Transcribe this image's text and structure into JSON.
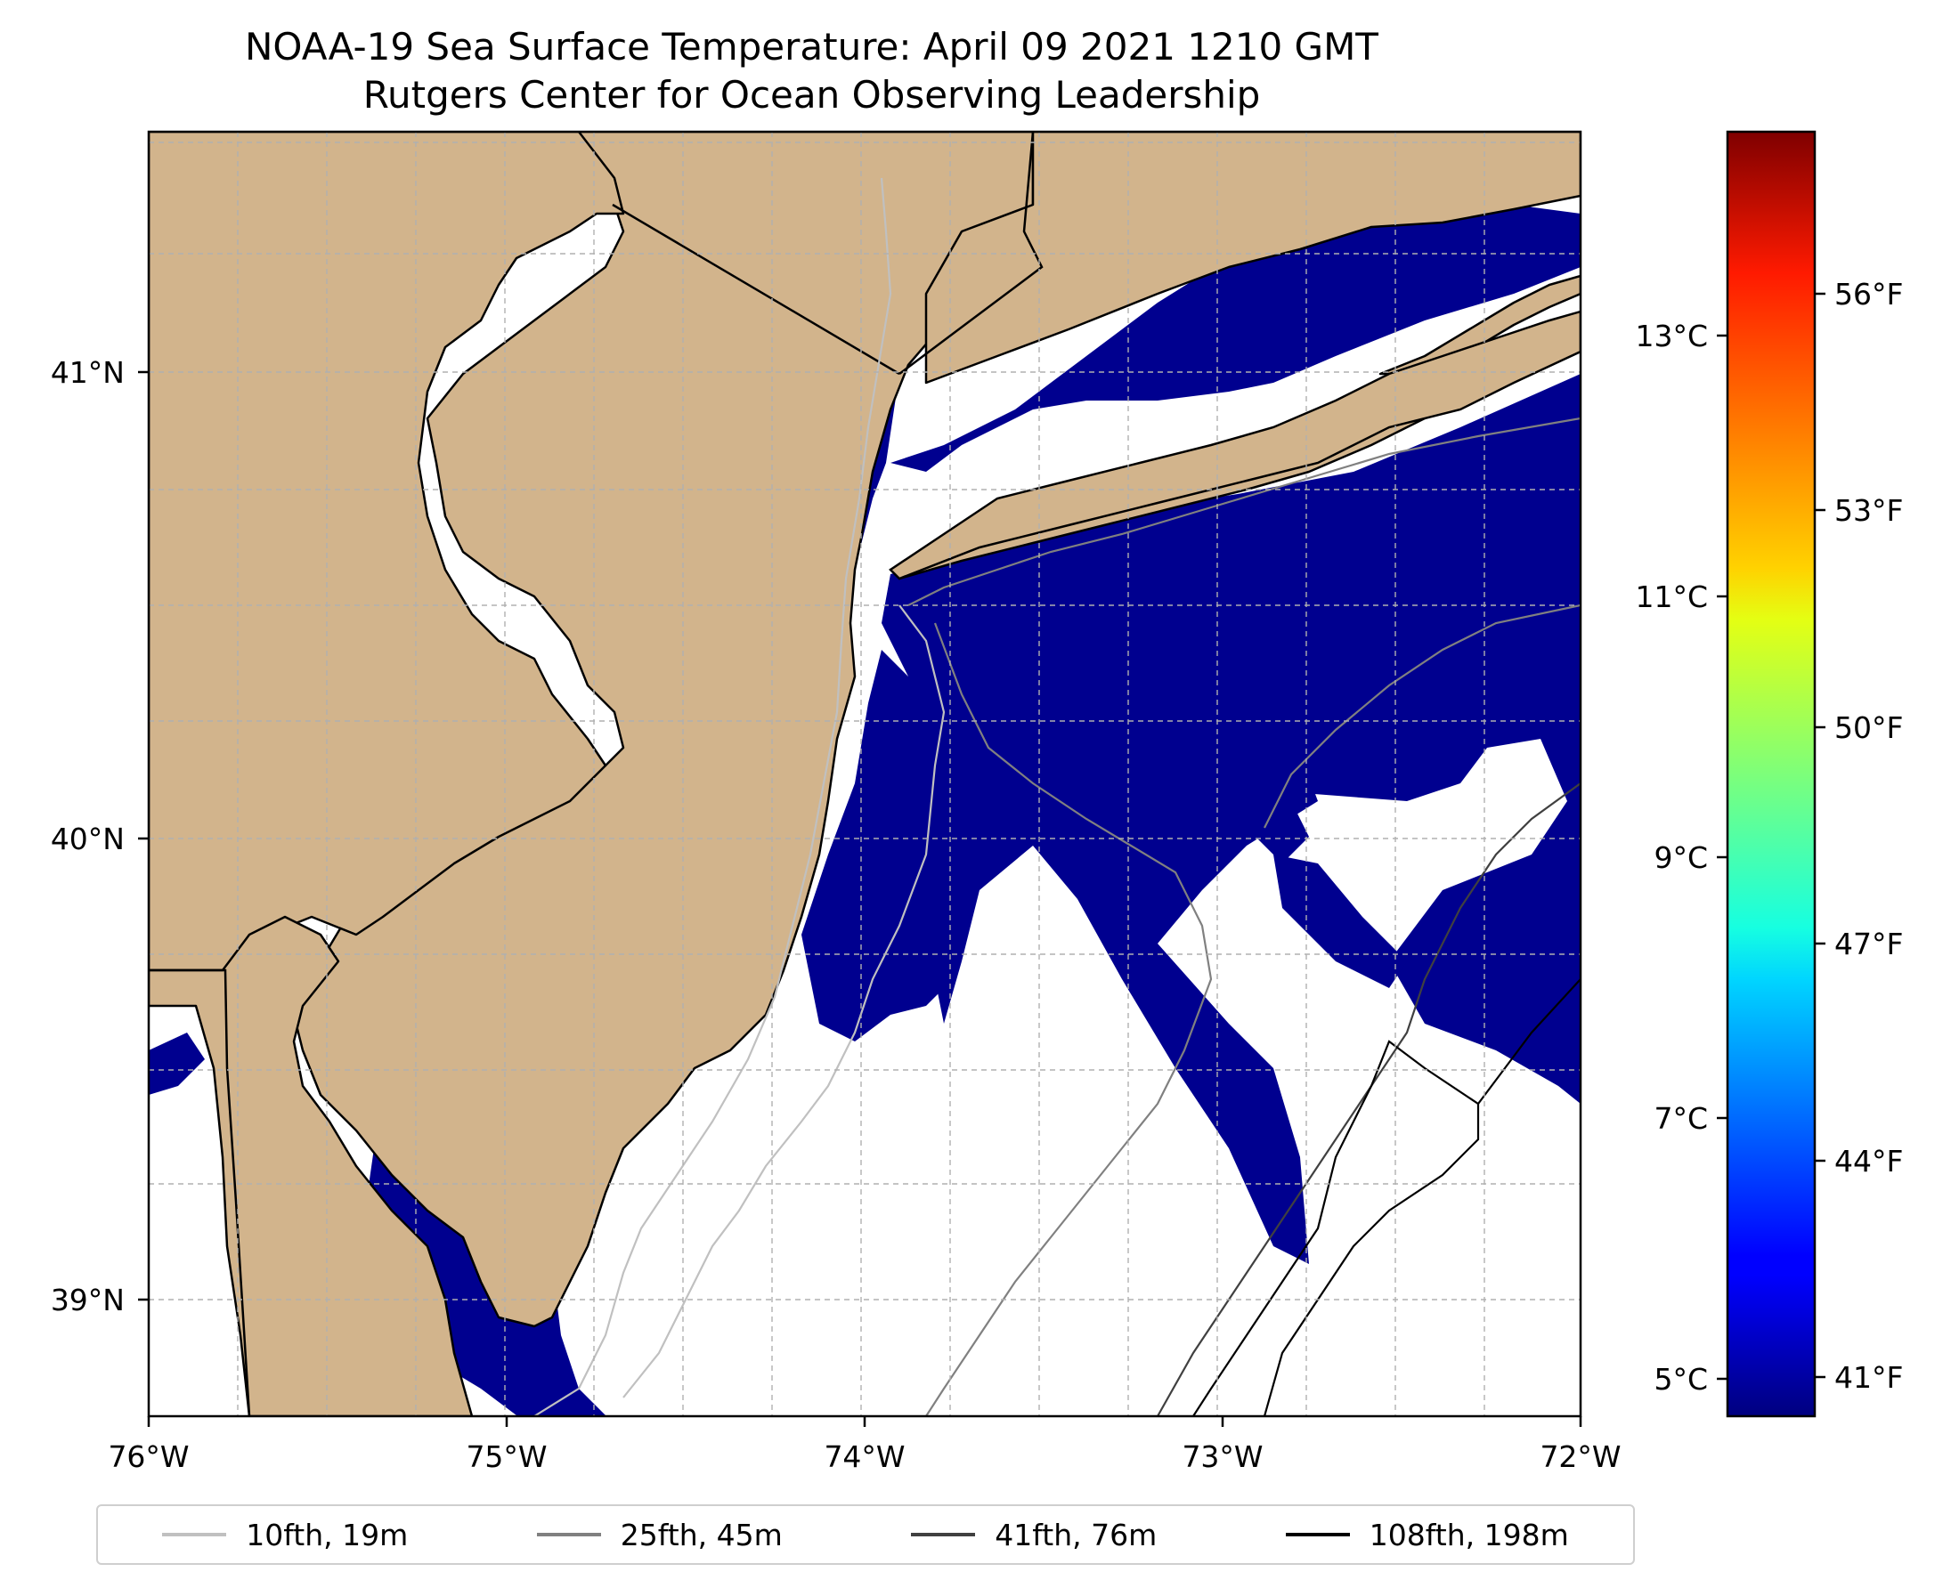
{
  "title": {
    "line1": "NOAA-19 Sea Surface Temperature: April 09 2021 1210 GMT",
    "line2": "Rutgers Center for Ocean Observing Leadership"
  },
  "axes": {
    "x_ticks": [
      "76°W",
      "75°W",
      "74°W",
      "73°W",
      "72°W"
    ],
    "y_ticks": [
      "41°N",
      "40°N",
      "39°N"
    ],
    "lon_range": [
      -76,
      -72
    ],
    "lat_range": [
      38.75,
      41.55
    ]
  },
  "colors": {
    "land": "#d2b48c",
    "cold_water": "#00008f",
    "cloud_gap": "#ffffff",
    "coast": "#000000"
  },
  "colorbar": {
    "celsius_ticks": [
      "13°C",
      "11°C",
      "9°C",
      "7°C",
      "5°C"
    ],
    "fahrenheit_ticks": [
      "56°F",
      "53°F",
      "50°F",
      "47°F",
      "44°F",
      "41°F"
    ],
    "cmap": "jet"
  },
  "legend": [
    {
      "label": "10fth, 19m",
      "color": "#c0c0c0"
    },
    {
      "label": "25fth, 45m",
      "color": "#808080"
    },
    {
      "label": "41fth, 76m",
      "color": "#404040"
    },
    {
      "label": "108fth, 198m",
      "color": "#000000"
    }
  ]
}
